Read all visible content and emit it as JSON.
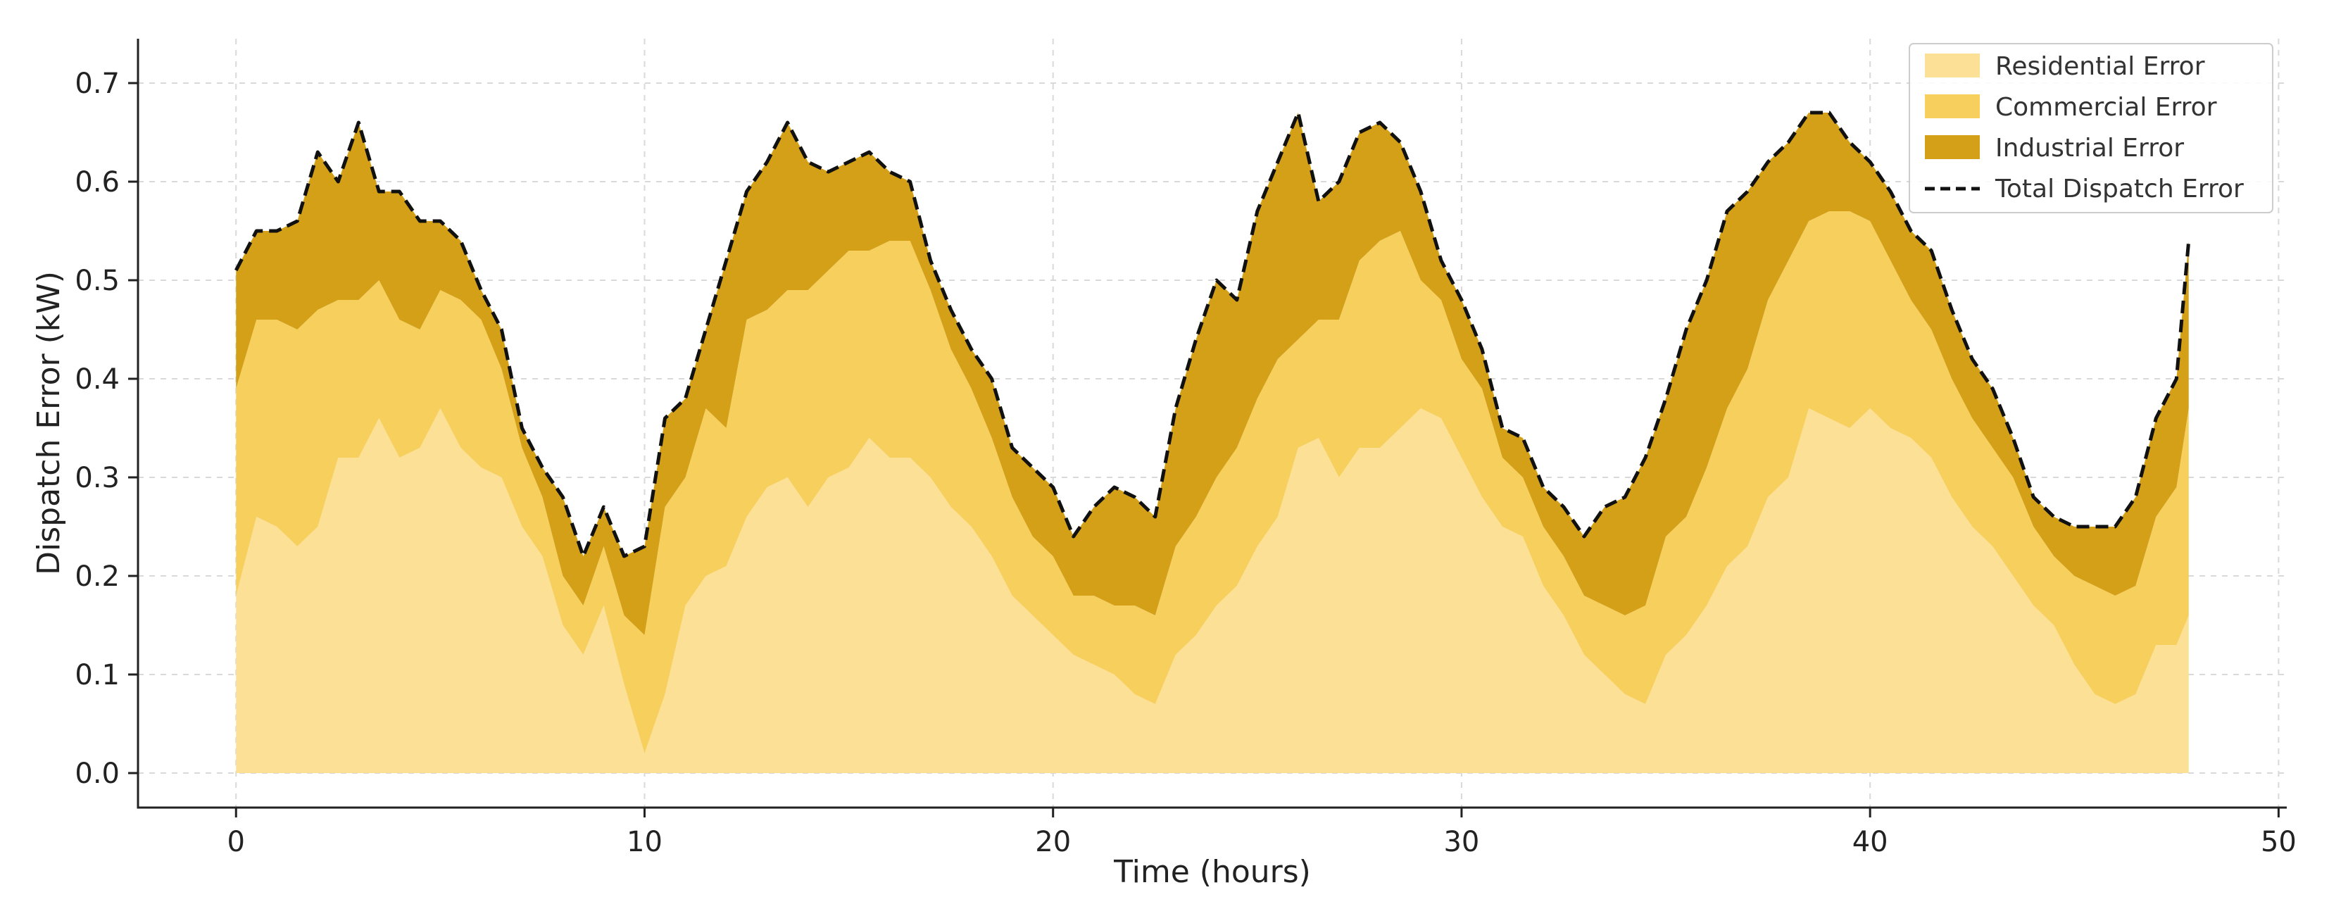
{
  "chart_data": {
    "type": "area",
    "stacked": true,
    "xlabel": "Time (hours)",
    "ylabel": "Dispatch Error (kW)",
    "xlim": [
      -2.4,
      50.2
    ],
    "ylim": [
      -0.035,
      0.745
    ],
    "xticks": [
      0,
      10,
      20,
      30,
      40,
      50
    ],
    "yticks": [
      0.0,
      0.1,
      0.2,
      0.3,
      0.4,
      0.5,
      0.6,
      0.7
    ],
    "xtick_labels": [
      "0",
      "10",
      "20",
      "30",
      "40",
      "50"
    ],
    "ytick_labels": [
      "0.0",
      "0.1",
      "0.2",
      "0.3",
      "0.4",
      "0.5",
      "0.6",
      "0.7"
    ],
    "grid": true,
    "legend_position": "top-right",
    "x": [
      0.0,
      0.5,
      1.0,
      1.5,
      2.0,
      2.5,
      3.0,
      3.5,
      4.0,
      4.5,
      5.0,
      5.5,
      6.0,
      6.5,
      7.0,
      7.5,
      8.0,
      8.5,
      9.0,
      9.5,
      10.0,
      10.5,
      11.0,
      11.5,
      12.0,
      12.5,
      13.0,
      13.5,
      14.0,
      14.5,
      15.0,
      15.5,
      16.0,
      16.5,
      17.0,
      17.5,
      18.0,
      18.5,
      19.0,
      19.5,
      20.0,
      20.5,
      21.0,
      21.5,
      22.0,
      22.5,
      23.0,
      23.5,
      24.0,
      24.5,
      25.0,
      25.5,
      26.0,
      26.5,
      27.0,
      27.5,
      28.0,
      28.5,
      29.0,
      29.5,
      30.0,
      30.5,
      31.0,
      31.5,
      32.0,
      32.5,
      33.0,
      33.5,
      34.0,
      34.5,
      35.0,
      35.5,
      36.0,
      36.5,
      37.0,
      37.5,
      38.0,
      38.5,
      39.0,
      39.5,
      40.0,
      40.5,
      41.0,
      41.5,
      42.0,
      42.5,
      43.0,
      43.5,
      44.0,
      44.5,
      45.0,
      45.5,
      46.0,
      46.5,
      47.0,
      47.5,
      47.8
    ],
    "series": [
      {
        "name": "Residential Error",
        "color": "#FCE096",
        "values": [
          0.18,
          0.26,
          0.25,
          0.23,
          0.25,
          0.32,
          0.32,
          0.36,
          0.32,
          0.33,
          0.37,
          0.33,
          0.31,
          0.3,
          0.25,
          0.22,
          0.15,
          0.12,
          0.17,
          0.09,
          0.02,
          0.08,
          0.17,
          0.2,
          0.21,
          0.26,
          0.29,
          0.3,
          0.27,
          0.3,
          0.31,
          0.34,
          0.32,
          0.32,
          0.3,
          0.27,
          0.25,
          0.22,
          0.18,
          0.16,
          0.14,
          0.12,
          0.11,
          0.1,
          0.08,
          0.07,
          0.12,
          0.14,
          0.17,
          0.19,
          0.23,
          0.26,
          0.33,
          0.34,
          0.3,
          0.33,
          0.33,
          0.35,
          0.37,
          0.36,
          0.32,
          0.28,
          0.25,
          0.24,
          0.19,
          0.16,
          0.12,
          0.1,
          0.08,
          0.07,
          0.12,
          0.14,
          0.17,
          0.21,
          0.23,
          0.28,
          0.3,
          0.37,
          0.36,
          0.35,
          0.37,
          0.35,
          0.34,
          0.32,
          0.28,
          0.25,
          0.23,
          0.2,
          0.17,
          0.15,
          0.11,
          0.08,
          0.07,
          0.08,
          0.13,
          0.13,
          0.16
        ]
      },
      {
        "name": "Commercial Error",
        "color": "#F7CF5C",
        "values": [
          0.21,
          0.2,
          0.21,
          0.22,
          0.22,
          0.16,
          0.16,
          0.14,
          0.14,
          0.12,
          0.12,
          0.15,
          0.15,
          0.11,
          0.08,
          0.06,
          0.05,
          0.05,
          0.06,
          0.07,
          0.12,
          0.19,
          0.13,
          0.17,
          0.14,
          0.2,
          0.18,
          0.19,
          0.22,
          0.21,
          0.22,
          0.19,
          0.22,
          0.22,
          0.19,
          0.16,
          0.14,
          0.12,
          0.1,
          0.08,
          0.08,
          0.06,
          0.07,
          0.07,
          0.09,
          0.09,
          0.11,
          0.12,
          0.13,
          0.14,
          0.15,
          0.16,
          0.11,
          0.12,
          0.16,
          0.19,
          0.21,
          0.2,
          0.13,
          0.12,
          0.1,
          0.11,
          0.07,
          0.06,
          0.06,
          0.06,
          0.06,
          0.07,
          0.08,
          0.1,
          0.12,
          0.12,
          0.14,
          0.16,
          0.18,
          0.2,
          0.22,
          0.19,
          0.21,
          0.22,
          0.19,
          0.17,
          0.14,
          0.13,
          0.12,
          0.11,
          0.1,
          0.1,
          0.08,
          0.07,
          0.09,
          0.11,
          0.11,
          0.11,
          0.13,
          0.16,
          0.21
        ]
      },
      {
        "name": "Industrial Error",
        "color": "#D4A017",
        "values": [
          0.12,
          0.09,
          0.09,
          0.11,
          0.16,
          0.12,
          0.18,
          0.09,
          0.13,
          0.11,
          0.07,
          0.06,
          0.03,
          0.04,
          0.02,
          0.03,
          0.08,
          0.05,
          0.04,
          0.06,
          0.09,
          0.09,
          0.08,
          0.08,
          0.17,
          0.13,
          0.15,
          0.17,
          0.13,
          0.1,
          0.09,
          0.1,
          0.07,
          0.06,
          0.03,
          0.04,
          0.04,
          0.06,
          0.05,
          0.07,
          0.07,
          0.06,
          0.09,
          0.12,
          0.11,
          0.1,
          0.14,
          0.18,
          0.2,
          0.15,
          0.19,
          0.2,
          0.23,
          0.12,
          0.14,
          0.13,
          0.12,
          0.09,
          0.09,
          0.04,
          0.06,
          0.04,
          0.03,
          0.04,
          0.04,
          0.05,
          0.06,
          0.1,
          0.12,
          0.15,
          0.14,
          0.19,
          0.19,
          0.2,
          0.18,
          0.14,
          0.12,
          0.11,
          0.1,
          0.07,
          0.06,
          0.07,
          0.07,
          0.08,
          0.07,
          0.06,
          0.06,
          0.04,
          0.03,
          0.04,
          0.05,
          0.06,
          0.07,
          0.09,
          0.1,
          0.11,
          0.17
        ]
      }
    ],
    "total_line": {
      "name": "Total Dispatch Error",
      "color": "#111111",
      "style": "dashed"
    }
  }
}
